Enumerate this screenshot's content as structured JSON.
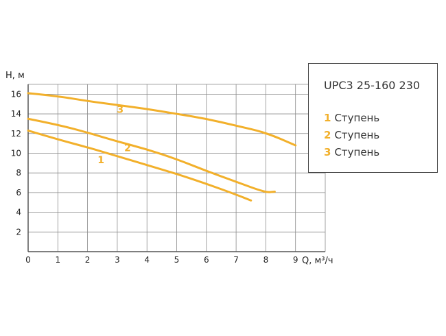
{
  "chart_data": {
    "type": "line",
    "ylabel": "H, м",
    "xlabel": "Q, м³/ч",
    "xlim": [
      0,
      10
    ],
    "ylim": [
      0,
      17
    ],
    "x_ticks": [
      0,
      1,
      2,
      3,
      4,
      5,
      6,
      7,
      8,
      9
    ],
    "y_ticks": [
      2,
      4,
      6,
      8,
      10,
      12,
      14,
      16
    ],
    "grid": true,
    "series_color": "#f2b02b",
    "series": [
      {
        "name": "1",
        "x": [
          0,
          1,
          2,
          3,
          4,
          5,
          6,
          7,
          7.5
        ],
        "y": [
          12.3,
          11.4,
          10.6,
          9.7,
          8.8,
          7.9,
          6.9,
          5.8,
          5.2
        ]
      },
      {
        "name": "2",
        "x": [
          0,
          1,
          2,
          3,
          4,
          5,
          6,
          7,
          8,
          8.3
        ],
        "y": [
          13.5,
          12.9,
          12.1,
          11.2,
          10.4,
          9.4,
          8.2,
          7.1,
          6.0,
          6.1
        ]
      },
      {
        "name": "3",
        "x": [
          0,
          1,
          2,
          3,
          4,
          5,
          6,
          7,
          8,
          9
        ],
        "y": [
          16.1,
          15.8,
          15.3,
          14.9,
          14.5,
          14.0,
          13.5,
          12.8,
          12.1,
          10.8
        ]
      }
    ],
    "curve_labels": [
      {
        "text": "1",
        "x": 2.45,
        "y": 9.0
      },
      {
        "text": "2",
        "x": 3.35,
        "y": 10.2
      },
      {
        "text": "3",
        "x": 3.1,
        "y": 14.1
      }
    ],
    "legend": {
      "placement": "top-right",
      "title": "UPC3 25-160 230",
      "items": [
        {
          "num": "1",
          "text": "Ступень"
        },
        {
          "num": "2",
          "text": "Ступень"
        },
        {
          "num": "3",
          "text": "Ступень"
        }
      ]
    }
  }
}
